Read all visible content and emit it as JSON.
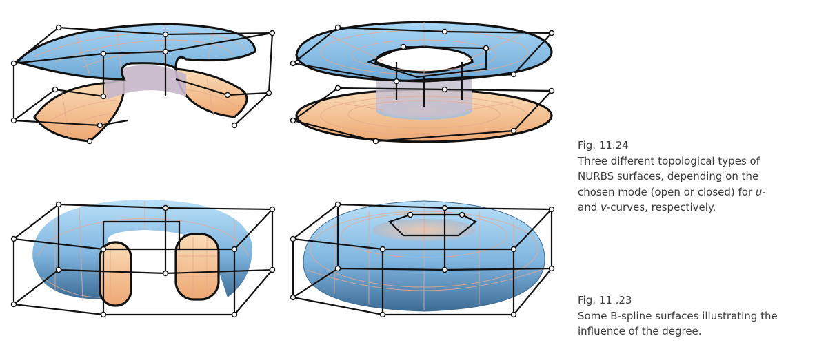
{
  "captions": [
    {
      "figure_label": "Fig. 11.24",
      "lines": [
        "Three different topological types of",
        "NURBS surfaces, depending on the",
        "chosen mode (open or closed) for u-",
        "and v-curves, respectively."
      ]
    },
    {
      "figure_label": "Fig. 11 .23",
      "lines": [
        "Some B-spline surfaces illustrating the",
        "influence of the degree."
      ]
    }
  ],
  "figures": [
    {
      "name": "open-open-surface",
      "upper_color": "#8cc4ec",
      "lower_color": "#f5c59a"
    },
    {
      "name": "closed-open-surface",
      "upper_color": "#8cc4ec",
      "lower_color": "#f5c59a"
    },
    {
      "name": "open-closed-torus",
      "body_color": "#8cc4ec",
      "section_color": "#f5c59a"
    },
    {
      "name": "closed-closed-torus",
      "body_color": "#8cc4ec"
    }
  ]
}
